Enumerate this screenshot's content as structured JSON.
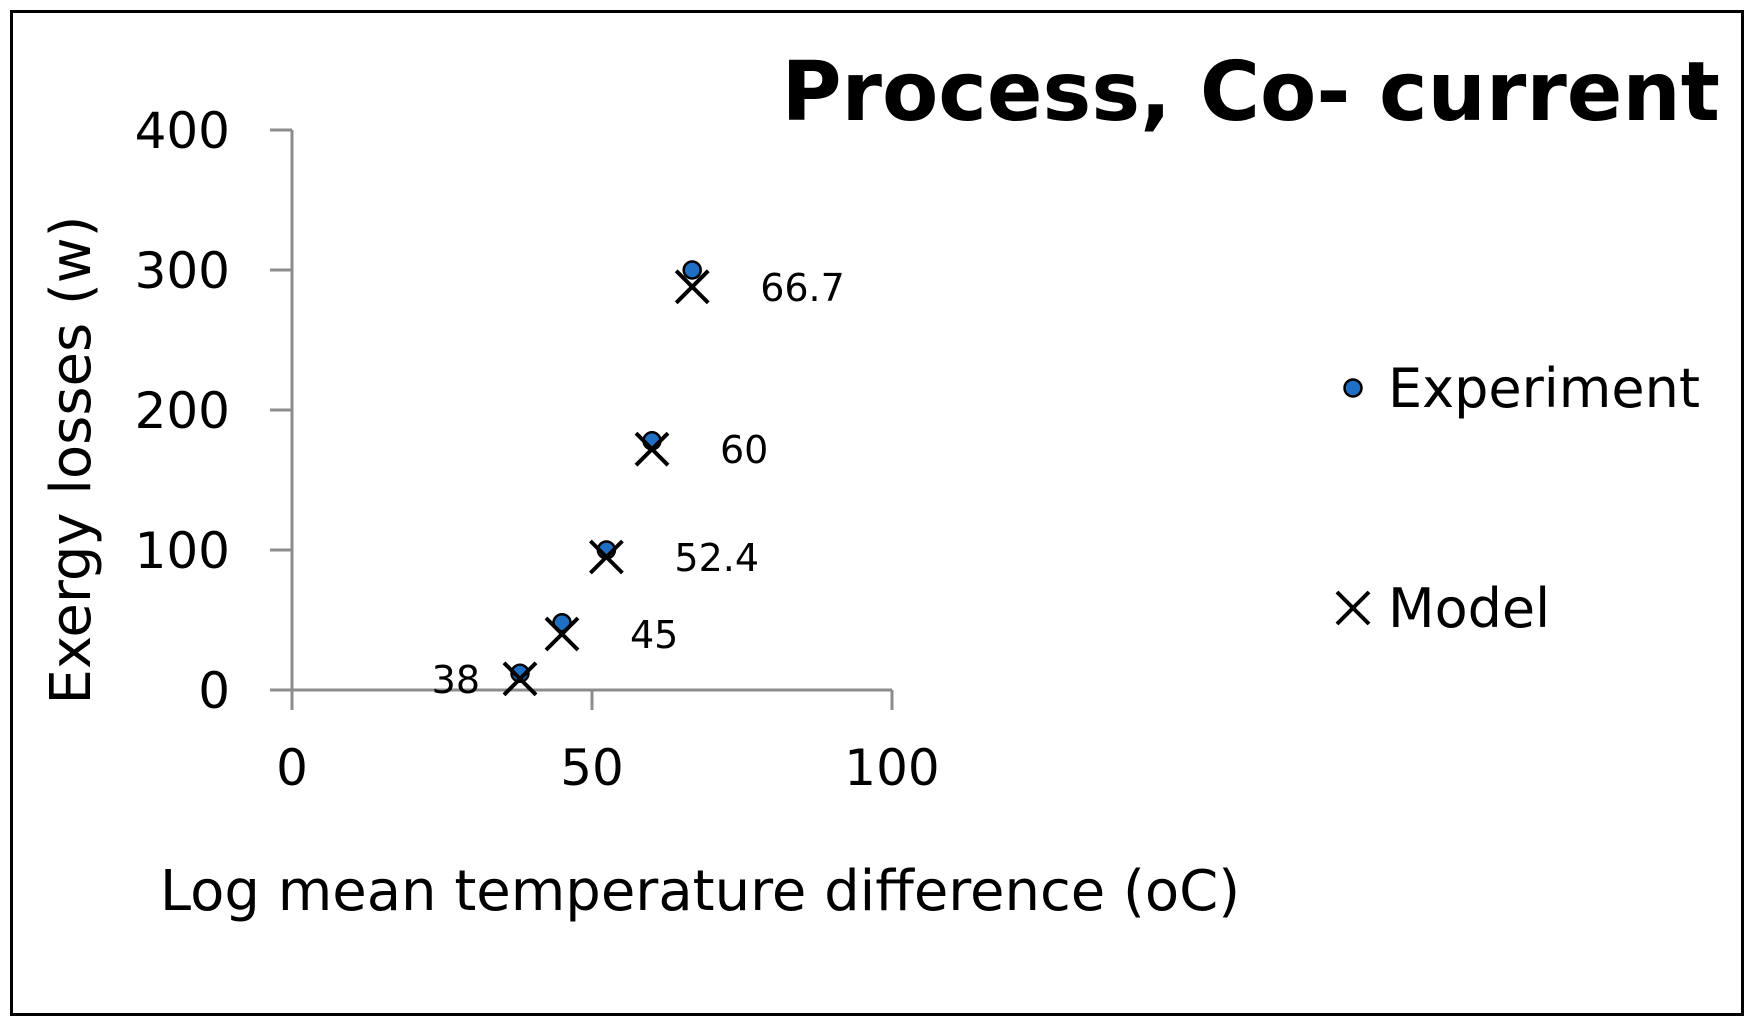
{
  "chart_data": {
    "type": "scatter",
    "title": "Process, Co- current",
    "xlabel": "Log mean temperature difference (oC)",
    "ylabel": "Exergy losses (w)",
    "xlim": [
      0,
      100
    ],
    "ylim": [
      0,
      400
    ],
    "x_ticks": [
      "0",
      "50",
      "100"
    ],
    "y_ticks": [
      "0",
      "100",
      "200",
      "300",
      "400"
    ],
    "grid": false,
    "legend_position": "right",
    "series": [
      {
        "name": "Experiment",
        "marker": "circle",
        "color": "#1f6fc4",
        "points": [
          {
            "x": 38,
            "y": 12
          },
          {
            "x": 45,
            "y": 48
          },
          {
            "x": 52.4,
            "y": 100
          },
          {
            "x": 60,
            "y": 178
          },
          {
            "x": 66.7,
            "y": 300
          }
        ]
      },
      {
        "name": "Model",
        "marker": "x",
        "color": "#000000",
        "points": [
          {
            "x": 38,
            "y": 8
          },
          {
            "x": 45,
            "y": 40
          },
          {
            "x": 52.4,
            "y": 95
          },
          {
            "x": 60,
            "y": 172
          },
          {
            "x": 66.7,
            "y": 288
          }
        ]
      }
    ],
    "annotations": [
      {
        "text": "38",
        "x": 38,
        "y": 8
      },
      {
        "text": "45",
        "x": 45,
        "y": 40
      },
      {
        "text": "52.4",
        "x": 52.4,
        "y": 95
      },
      {
        "text": "60",
        "x": 60,
        "y": 172
      },
      {
        "text": "66.7",
        "x": 66.7,
        "y": 288
      }
    ]
  }
}
